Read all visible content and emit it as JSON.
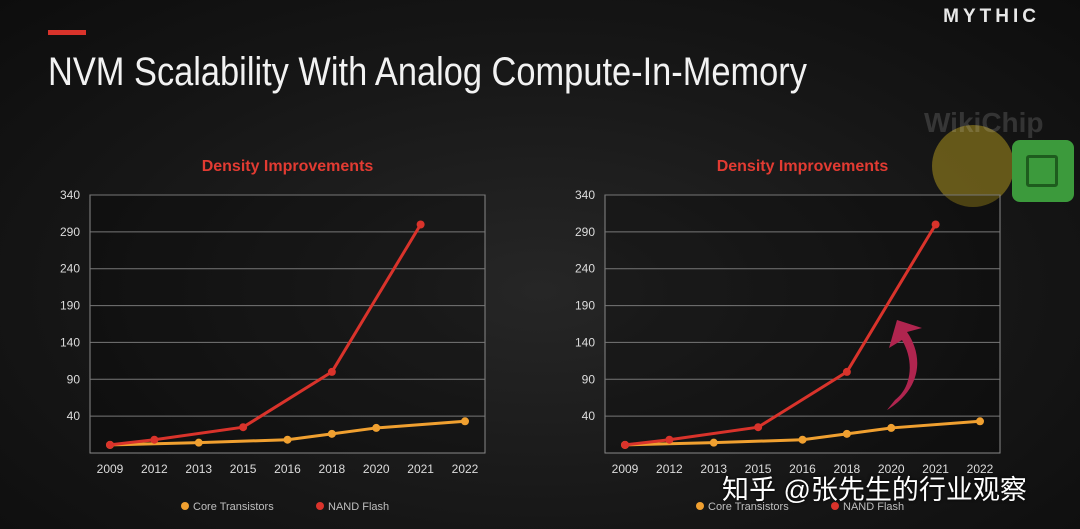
{
  "header": {
    "brand": "MYTHIC",
    "title": "NVM Scalability With Analog Compute-In-Memory",
    "accent_color": "#d9332b"
  },
  "watermarks": {
    "wikichip": "WikiChip",
    "zhihu": "知乎 @张先生的行业观察"
  },
  "arrow": {
    "color": "#b0254f",
    "icon": "curved-up-arrow-icon"
  },
  "chart_data": [
    {
      "type": "line",
      "title": "Density Improvements",
      "categories": [
        "2009",
        "2012",
        "2013",
        "2015",
        "2016",
        "2018",
        "2020",
        "2021",
        "2022"
      ],
      "yticks": [
        40,
        90,
        140,
        190,
        240,
        290,
        340
      ],
      "ylim": [
        -10,
        340
      ],
      "grid": true,
      "legend_position": "bottom",
      "series": [
        {
          "name": "Core Transistors",
          "color": "#f0a030",
          "x": [
            "2009",
            "2013",
            "2016",
            "2018",
            "2020",
            "2022"
          ],
          "values": [
            1,
            4,
            8,
            16,
            24,
            33
          ]
        },
        {
          "name": "NAND Flash",
          "color": "#d9332b",
          "x": [
            "2009",
            "2012",
            "2015",
            "2018",
            "2021"
          ],
          "values": [
            1,
            8,
            25,
            100,
            300
          ]
        }
      ]
    },
    {
      "type": "line",
      "title": "Density Improvements",
      "categories": [
        "2009",
        "2012",
        "2013",
        "2015",
        "2016",
        "2018",
        "2020",
        "2021",
        "2022"
      ],
      "yticks": [
        40,
        90,
        140,
        190,
        240,
        290,
        340
      ],
      "ylim": [
        -10,
        340
      ],
      "grid": true,
      "legend_position": "bottom",
      "series": [
        {
          "name": "Core Transistors",
          "color": "#f0a030",
          "x": [
            "2009",
            "2013",
            "2016",
            "2018",
            "2020",
            "2022"
          ],
          "values": [
            1,
            4,
            8,
            16,
            24,
            33
          ]
        },
        {
          "name": "NAND Flash",
          "color": "#d9332b",
          "x": [
            "2009",
            "2012",
            "2015",
            "2018",
            "2021"
          ],
          "values": [
            1,
            8,
            25,
            100,
            300
          ]
        }
      ]
    }
  ]
}
